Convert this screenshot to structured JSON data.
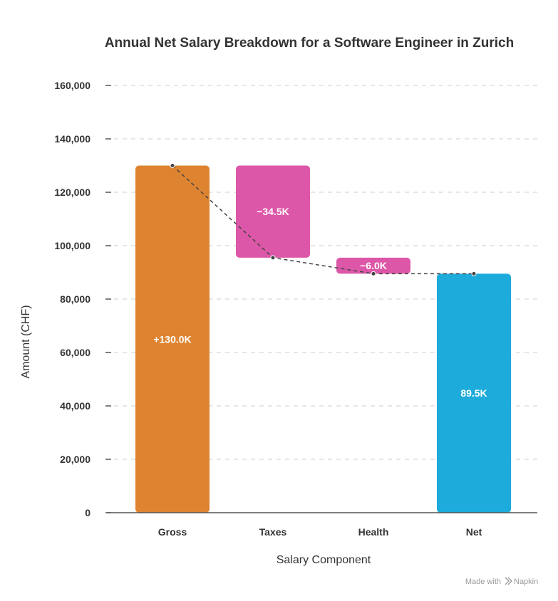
{
  "chart_data": {
    "type": "waterfall",
    "title": "Annual Net Salary Breakdown for a Software Engineer in Zurich",
    "xlabel": "Salary Component",
    "ylabel": "Amount (CHF)",
    "ylim": [
      0,
      160000
    ],
    "yticks": [
      0,
      20000,
      40000,
      60000,
      80000,
      100000,
      120000,
      140000,
      160000
    ],
    "ytick_labels": [
      "0",
      "20,000",
      "40,000",
      "60,000",
      "80,000",
      "100,000",
      "120,000",
      "140,000",
      "160,000"
    ],
    "grid": true,
    "categories": [
      "Gross",
      "Taxes",
      "Health",
      "Net"
    ],
    "steps": [
      {
        "category": "Gross",
        "start": 0,
        "end": 130000,
        "label": "+130.0K",
        "color": "#DE8431"
      },
      {
        "category": "Taxes",
        "start": 130000,
        "end": 95500,
        "label": "−34.5K",
        "color": "#DD57A8"
      },
      {
        "category": "Health",
        "start": 95500,
        "end": 89500,
        "label": "−6.0K",
        "color": "#DD57A8"
      },
      {
        "category": "Net",
        "start": 0,
        "end": 89500,
        "label": "89.5K",
        "color": "#1DABDC"
      }
    ],
    "connector_points": [
      130000,
      95500,
      89500,
      89500
    ]
  },
  "footer": {
    "credit": "Made with",
    "brand": "Napkin"
  },
  "colors": {
    "text": "#333333",
    "grid": "#dddddd",
    "connector": "#444444",
    "credit": "#9a9a9a"
  }
}
